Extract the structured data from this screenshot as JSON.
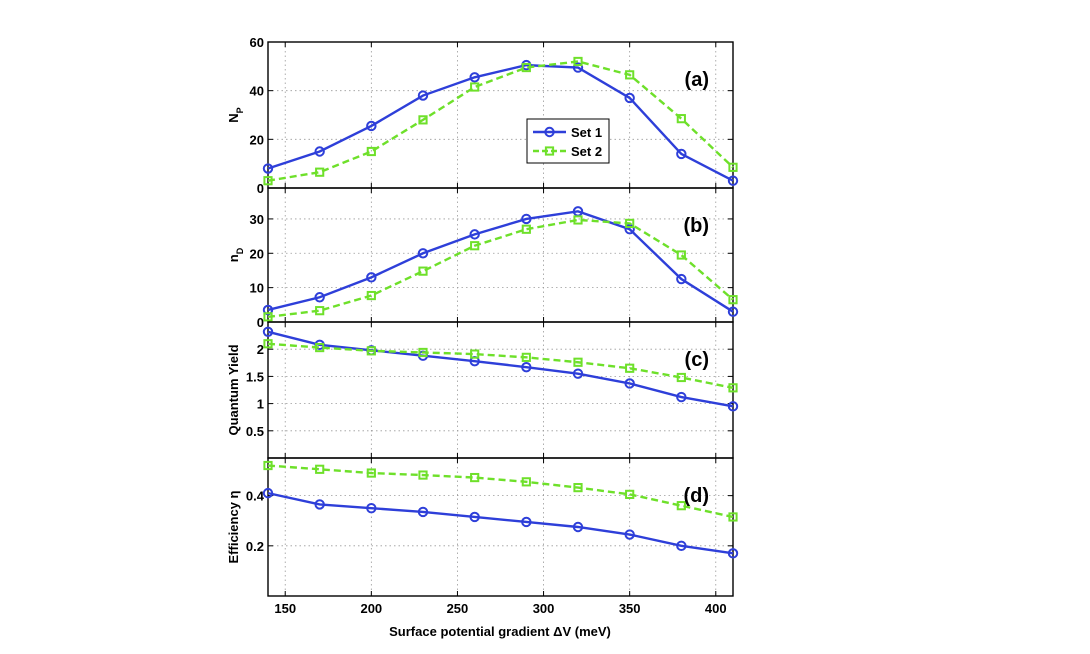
{
  "chart_data": {
    "type": "line",
    "layout": "stacked-panels",
    "shared_x": {
      "label": "Surface potential gradient  ΔV  (meV)",
      "range": [
        140,
        410
      ],
      "ticks": [
        150,
        200,
        250,
        300,
        350,
        400
      ],
      "values": [
        140,
        170,
        200,
        230,
        260,
        290,
        320,
        350,
        380,
        410
      ]
    },
    "series_styles": [
      {
        "name": "Set 1",
        "color": "#2e3fd9",
        "marker": "circle",
        "dash": "solid"
      },
      {
        "name": "Set 2",
        "color": "#6ee02a",
        "marker": "square",
        "dash": "dashed"
      }
    ],
    "legend": {
      "entries": [
        "Set 1",
        "Set 2"
      ],
      "placement": "inside panel (a), right of center"
    },
    "grid": true,
    "panels": [
      {
        "id": "a",
        "label": "(a)",
        "ylabel": "N",
        "ylabel_sub": "P",
        "ylim": [
          0,
          60
        ],
        "yticks": [
          0,
          20,
          40,
          60
        ],
        "series": [
          {
            "name": "Set 1",
            "values": [
              8,
              15,
              25.5,
              38,
              45.5,
              50.5,
              49.5,
              37,
              14,
              3
            ]
          },
          {
            "name": "Set 2",
            "values": [
              3,
              6.5,
              15,
              28,
              41.5,
              49.5,
              52,
              46.5,
              28.5,
              8.5
            ]
          }
        ]
      },
      {
        "id": "b",
        "label": "(b)",
        "ylabel": "n",
        "ylabel_sub": "D",
        "ylim": [
          0,
          39
        ],
        "yticks": [
          0,
          10,
          20,
          30
        ],
        "series": [
          {
            "name": "Set 1",
            "values": [
              3.5,
              7.2,
              13,
              20,
              25.5,
              30,
              32.2,
              27,
              12.5,
              3
            ]
          },
          {
            "name": "Set 2",
            "values": [
              1.5,
              3.3,
              7.7,
              14.8,
              22.2,
              27,
              29.7,
              28.7,
              19.5,
              6.5
            ]
          }
        ]
      },
      {
        "id": "c",
        "label": "(c)",
        "ylabel": "Quantum Yield",
        "ylabel_sub": "",
        "ylim": [
          0,
          2.5
        ],
        "yticks": [
          0.5,
          1,
          1.5,
          2
        ],
        "series": [
          {
            "name": "Set 1",
            "values": [
              2.32,
              2.08,
              1.98,
              1.88,
              1.78,
              1.67,
              1.55,
              1.37,
              1.12,
              0.95
            ]
          },
          {
            "name": "Set 2",
            "values": [
              2.1,
              2.03,
              1.97,
              1.94,
              1.91,
              1.85,
              1.76,
              1.65,
              1.48,
              1.29
            ]
          }
        ]
      },
      {
        "id": "d",
        "label": "(d)",
        "ylabel": "Efficiency  η",
        "ylabel_sub": "",
        "ylim": [
          0,
          0.55
        ],
        "yticks": [
          0.2,
          0.4
        ],
        "series": [
          {
            "name": "Set 1",
            "values": [
              0.41,
              0.365,
              0.35,
              0.335,
              0.315,
              0.295,
              0.275,
              0.245,
              0.2,
              0.17
            ]
          },
          {
            "name": "Set 2",
            "values": [
              0.52,
              0.505,
              0.49,
              0.482,
              0.472,
              0.455,
              0.432,
              0.405,
              0.36,
              0.315
            ]
          }
        ]
      }
    ]
  }
}
